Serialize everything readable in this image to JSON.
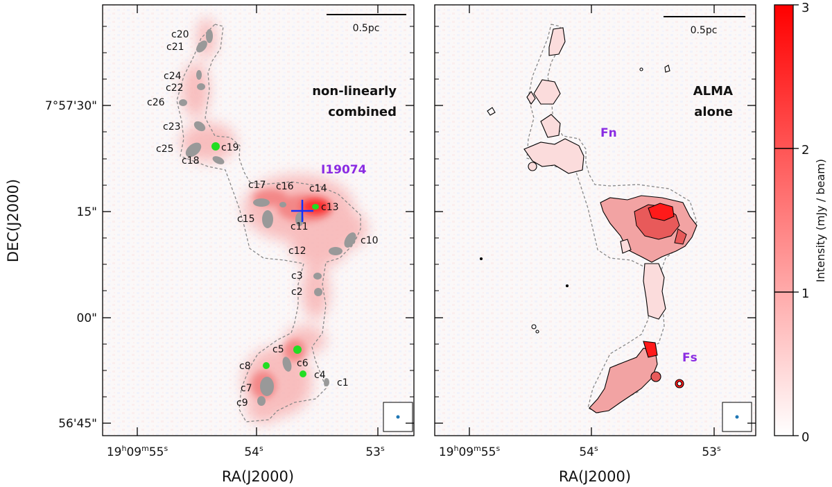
{
  "chart_data": [
    {
      "type": "heatmap",
      "panel": "left",
      "title": "non-linearly combined",
      "title_lines": [
        "non-linearly",
        "combined"
      ],
      "xlabel": "RA(J2000)",
      "ylabel": "DEC(J2000)",
      "x_ticks": [
        {
          "h": "19",
          "m": "09",
          "s": "55"
        },
        {
          "s": "54"
        },
        {
          "s": "53"
        }
      ],
      "y_ticks": [
        "7°57'30\"",
        "15\"",
        "00\"",
        "56'45\""
      ],
      "scale_bar": "0.5pc",
      "source_label": "I19074",
      "cores": [
        "c1",
        "c2",
        "c3",
        "c4",
        "c5",
        "c6",
        "c7",
        "c8",
        "c9",
        "c10",
        "c11",
        "c12",
        "c13",
        "c14",
        "c15",
        "c16",
        "c17",
        "c18",
        "c19",
        "c20",
        "c21",
        "c22",
        "c23",
        "c24",
        "c25",
        "c26"
      ],
      "highlighted_cores": [
        "c5",
        "c6",
        "c8",
        "c13",
        "c19"
      ]
    },
    {
      "type": "heatmap",
      "panel": "right",
      "title": "ALMA alone",
      "title_lines": [
        "ALMA",
        "alone"
      ],
      "xlabel": "RA(J2000)",
      "x_ticks": [
        {
          "h": "19",
          "m": "09",
          "s": "55"
        },
        {
          "s": "54"
        },
        {
          "s": "53"
        }
      ],
      "scale_bar": "0.5pc",
      "region_labels": [
        "Fn",
        "Fs"
      ]
    }
  ],
  "colorbar": {
    "label": "Intensity (mJy / beam)",
    "range": [
      0,
      3
    ],
    "ticks": [
      "0",
      "1",
      "2",
      "3"
    ],
    "colors": {
      "low": "#ffffff",
      "high": "#ff0000"
    }
  },
  "colors": {
    "accent_label": "#8a2be2",
    "core_fill": "#999999",
    "core_highlight": "#22dd22",
    "cross": "#1030ff",
    "contour": "#000000",
    "boundary": "#888888"
  }
}
